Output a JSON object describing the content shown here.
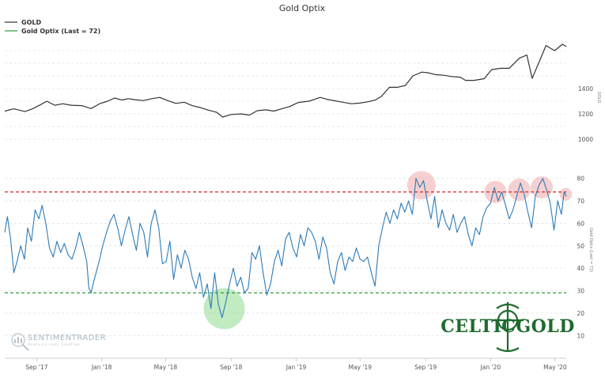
{
  "chart_data": {
    "type": "line",
    "title": "Gold Optix",
    "legend": [
      {
        "name": "GOLD",
        "color": "#333333"
      },
      {
        "name": "Gold Optix (Last = 72)",
        "color": "#2b7bb9"
      }
    ],
    "legend_placement": "top-left",
    "grid": true,
    "x_tick_labels": [
      "Sep '17",
      "Jan '18",
      "May '18",
      "Sep '18",
      "Jan '19",
      "May '19",
      "Sep '19",
      "Jan '20",
      "May '20"
    ],
    "x_range": [
      "2017-07-03",
      "2020-05-22"
    ],
    "gold_axis": {
      "label": "GOLD",
      "tick_labels": [
        "1000",
        "1200",
        "1400"
      ],
      "range": [
        800,
        1800
      ]
    },
    "optix_axis": {
      "label": "Gold Optix (Last = 72)",
      "tick_labels": [
        "10",
        "20",
        "30",
        "40",
        "50",
        "60",
        "70",
        "80"
      ],
      "range": [
        2,
        88
      ]
    },
    "thresholds": [
      {
        "name": "upper",
        "value": 74,
        "color": "#d9262b"
      },
      {
        "name": "lower",
        "value": 29,
        "color": "#2e9a3a"
      }
    ],
    "series": [
      {
        "name": "GOLD",
        "color": "#333333",
        "points": [
          [
            "2017-07-03",
            1222
          ],
          [
            "2017-07-20",
            1240
          ],
          [
            "2017-08-10",
            1218
          ],
          [
            "2017-08-25",
            1242
          ],
          [
            "2017-09-07",
            1270
          ],
          [
            "2017-09-20",
            1300
          ],
          [
            "2017-10-05",
            1268
          ],
          [
            "2017-10-20",
            1280
          ],
          [
            "2017-11-05",
            1268
          ],
          [
            "2017-11-25",
            1265
          ],
          [
            "2017-12-12",
            1242
          ],
          [
            "2017-12-29",
            1282
          ],
          [
            "2018-01-12",
            1300
          ],
          [
            "2018-01-25",
            1325
          ],
          [
            "2018-02-08",
            1310
          ],
          [
            "2018-02-20",
            1320
          ],
          [
            "2018-03-05",
            1312
          ],
          [
            "2018-03-20",
            1305
          ],
          [
            "2018-04-05",
            1320
          ],
          [
            "2018-04-20",
            1330
          ],
          [
            "2018-05-05",
            1305
          ],
          [
            "2018-05-20",
            1283
          ],
          [
            "2018-06-05",
            1292
          ],
          [
            "2018-06-20",
            1265
          ],
          [
            "2018-07-05",
            1250
          ],
          [
            "2018-07-20",
            1230
          ],
          [
            "2018-08-05",
            1212
          ],
          [
            "2018-08-16",
            1175
          ],
          [
            "2018-09-01",
            1195
          ],
          [
            "2018-09-20",
            1200
          ],
          [
            "2018-10-05",
            1190
          ],
          [
            "2018-10-20",
            1225
          ],
          [
            "2018-11-05",
            1232
          ],
          [
            "2018-11-20",
            1222
          ],
          [
            "2018-12-05",
            1240
          ],
          [
            "2018-12-20",
            1258
          ],
          [
            "2019-01-05",
            1290
          ],
          [
            "2019-01-25",
            1300
          ],
          [
            "2019-02-15",
            1330
          ],
          [
            "2019-02-28",
            1315
          ],
          [
            "2019-03-15",
            1303
          ],
          [
            "2019-03-30",
            1292
          ],
          [
            "2019-04-15",
            1280
          ],
          [
            "2019-04-30",
            1285
          ],
          [
            "2019-05-15",
            1295
          ],
          [
            "2019-05-30",
            1310
          ],
          [
            "2019-06-10",
            1338
          ],
          [
            "2019-06-25",
            1410
          ],
          [
            "2019-07-10",
            1410
          ],
          [
            "2019-07-25",
            1425
          ],
          [
            "2019-08-08",
            1500
          ],
          [
            "2019-08-25",
            1530
          ],
          [
            "2019-09-05",
            1525
          ],
          [
            "2019-09-20",
            1510
          ],
          [
            "2019-10-05",
            1505
          ],
          [
            "2019-10-20",
            1495
          ],
          [
            "2019-11-05",
            1490
          ],
          [
            "2019-11-15",
            1465
          ],
          [
            "2019-12-01",
            1465
          ],
          [
            "2019-12-20",
            1478
          ],
          [
            "2020-01-03",
            1550
          ],
          [
            "2020-01-20",
            1560
          ],
          [
            "2020-02-05",
            1560
          ],
          [
            "2020-02-24",
            1640
          ],
          [
            "2020-03-09",
            1665
          ],
          [
            "2020-03-19",
            1480
          ],
          [
            "2020-03-31",
            1600
          ],
          [
            "2020-04-14",
            1740
          ],
          [
            "2020-04-30",
            1700
          ],
          [
            "2020-05-15",
            1750
          ],
          [
            "2020-05-22",
            1732
          ]
        ]
      },
      {
        "name": "Gold Optix (Last = 72)",
        "color": "#2b7bb9",
        "points": [
          [
            "2017-07-03",
            56
          ],
          [
            "2017-07-08",
            63
          ],
          [
            "2017-07-14",
            53
          ],
          [
            "2017-07-20",
            38
          ],
          [
            "2017-07-26",
            43
          ],
          [
            "2017-08-02",
            50
          ],
          [
            "2017-08-09",
            44
          ],
          [
            "2017-08-15",
            58
          ],
          [
            "2017-08-22",
            52
          ],
          [
            "2017-08-29",
            66
          ],
          [
            "2017-09-05",
            62
          ],
          [
            "2017-09-11",
            68
          ],
          [
            "2017-09-18",
            60
          ],
          [
            "2017-09-25",
            49
          ],
          [
            "2017-10-02",
            45
          ],
          [
            "2017-10-09",
            52
          ],
          [
            "2017-10-16",
            47
          ],
          [
            "2017-10-23",
            51
          ],
          [
            "2017-10-30",
            46
          ],
          [
            "2017-11-06",
            44
          ],
          [
            "2017-11-13",
            49
          ],
          [
            "2017-11-20",
            56
          ],
          [
            "2017-11-27",
            50
          ],
          [
            "2017-12-04",
            43
          ],
          [
            "2017-12-08",
            31
          ],
          [
            "2017-12-12",
            29
          ],
          [
            "2017-12-18",
            35
          ],
          [
            "2017-12-26",
            42
          ],
          [
            "2018-01-03",
            50
          ],
          [
            "2018-01-10",
            56
          ],
          [
            "2018-01-17",
            61
          ],
          [
            "2018-01-24",
            64
          ],
          [
            "2018-01-31",
            58
          ],
          [
            "2018-02-07",
            50
          ],
          [
            "2018-02-14",
            57
          ],
          [
            "2018-02-21",
            63
          ],
          [
            "2018-02-28",
            55
          ],
          [
            "2018-03-07",
            48
          ],
          [
            "2018-03-14",
            60
          ],
          [
            "2018-03-21",
            56
          ],
          [
            "2018-03-28",
            45
          ],
          [
            "2018-04-04",
            60
          ],
          [
            "2018-04-11",
            66
          ],
          [
            "2018-04-18",
            58
          ],
          [
            "2018-04-25",
            42
          ],
          [
            "2018-05-02",
            43
          ],
          [
            "2018-05-09",
            52
          ],
          [
            "2018-05-16",
            35
          ],
          [
            "2018-05-23",
            46
          ],
          [
            "2018-05-30",
            40
          ],
          [
            "2018-06-06",
            48
          ],
          [
            "2018-06-13",
            44
          ],
          [
            "2018-06-20",
            36
          ],
          [
            "2018-06-27",
            31
          ],
          [
            "2018-07-04",
            38
          ],
          [
            "2018-07-11",
            27
          ],
          [
            "2018-07-18",
            33
          ],
          [
            "2018-07-25",
            22
          ],
          [
            "2018-08-01",
            38
          ],
          [
            "2018-08-08",
            24
          ],
          [
            "2018-08-15",
            18
          ],
          [
            "2018-08-22",
            25
          ],
          [
            "2018-08-29",
            33
          ],
          [
            "2018-09-05",
            40
          ],
          [
            "2018-09-12",
            32
          ],
          [
            "2018-09-19",
            36
          ],
          [
            "2018-09-26",
            29
          ],
          [
            "2018-10-03",
            31
          ],
          [
            "2018-10-10",
            47
          ],
          [
            "2018-10-17",
            44
          ],
          [
            "2018-10-24",
            50
          ],
          [
            "2018-10-31",
            38
          ],
          [
            "2018-11-07",
            28
          ],
          [
            "2018-11-14",
            33
          ],
          [
            "2018-11-21",
            43
          ],
          [
            "2018-11-28",
            48
          ],
          [
            "2018-12-05",
            41
          ],
          [
            "2018-12-12",
            53
          ],
          [
            "2018-12-19",
            56
          ],
          [
            "2018-12-26",
            49
          ],
          [
            "2019-01-02",
            45
          ],
          [
            "2019-01-09",
            55
          ],
          [
            "2019-01-16",
            50
          ],
          [
            "2019-01-23",
            58
          ],
          [
            "2019-01-30",
            56
          ],
          [
            "2019-02-06",
            52
          ],
          [
            "2019-02-13",
            44
          ],
          [
            "2019-02-20",
            54
          ],
          [
            "2019-02-27",
            49
          ],
          [
            "2019-03-06",
            38
          ],
          [
            "2019-03-13",
            33
          ],
          [
            "2019-03-20",
            43
          ],
          [
            "2019-03-27",
            47
          ],
          [
            "2019-04-03",
            39
          ],
          [
            "2019-04-10",
            45
          ],
          [
            "2019-04-17",
            43
          ],
          [
            "2019-04-24",
            49
          ],
          [
            "2019-05-01",
            44
          ],
          [
            "2019-05-08",
            43
          ],
          [
            "2019-05-15",
            45
          ],
          [
            "2019-05-22",
            38
          ],
          [
            "2019-05-29",
            32
          ],
          [
            "2019-06-05",
            50
          ],
          [
            "2019-06-12",
            58
          ],
          [
            "2019-06-19",
            65
          ],
          [
            "2019-06-26",
            60
          ],
          [
            "2019-07-03",
            66
          ],
          [
            "2019-07-10",
            62
          ],
          [
            "2019-07-17",
            69
          ],
          [
            "2019-07-24",
            65
          ],
          [
            "2019-07-31",
            70
          ],
          [
            "2019-08-07",
            64
          ],
          [
            "2019-08-14",
            80
          ],
          [
            "2019-08-21",
            76
          ],
          [
            "2019-08-28",
            79
          ],
          [
            "2019-09-04",
            70
          ],
          [
            "2019-09-11",
            62
          ],
          [
            "2019-09-18",
            72
          ],
          [
            "2019-09-25",
            58
          ],
          [
            "2019-10-02",
            66
          ],
          [
            "2019-10-09",
            60
          ],
          [
            "2019-10-16",
            57
          ],
          [
            "2019-10-23",
            64
          ],
          [
            "2019-10-30",
            56
          ],
          [
            "2019-11-06",
            60
          ],
          [
            "2019-11-13",
            63
          ],
          [
            "2019-11-20",
            55
          ],
          [
            "2019-11-27",
            50
          ],
          [
            "2019-12-04",
            58
          ],
          [
            "2019-12-11",
            55
          ],
          [
            "2019-12-18",
            63
          ],
          [
            "2019-12-25",
            67
          ],
          [
            "2020-01-01",
            69
          ],
          [
            "2020-01-08",
            76
          ],
          [
            "2020-01-15",
            70
          ],
          [
            "2020-01-22",
            74
          ],
          [
            "2020-01-29",
            68
          ],
          [
            "2020-02-05",
            62
          ],
          [
            "2020-02-12",
            66
          ],
          [
            "2020-02-19",
            72
          ],
          [
            "2020-02-26",
            78
          ],
          [
            "2020-03-04",
            73
          ],
          [
            "2020-03-11",
            65
          ],
          [
            "2020-03-18",
            58
          ],
          [
            "2020-03-25",
            72
          ],
          [
            "2020-04-01",
            77
          ],
          [
            "2020-04-08",
            80
          ],
          [
            "2020-04-15",
            75
          ],
          [
            "2020-04-22",
            69
          ],
          [
            "2020-04-29",
            57
          ],
          [
            "2020-05-06",
            70
          ],
          [
            "2020-05-13",
            64
          ],
          [
            "2020-05-18",
            74
          ],
          [
            "2020-05-22",
            72
          ]
        ]
      }
    ],
    "annotations": [
      {
        "type": "highlight-circle",
        "color": "red",
        "date": "2019-08-24",
        "value": 77
      },
      {
        "type": "highlight-circle",
        "color": "red",
        "date": "2020-01-10",
        "value": 74
      },
      {
        "type": "highlight-circle",
        "color": "red",
        "date": "2020-02-24",
        "value": 75
      },
      {
        "type": "highlight-circle",
        "color": "red",
        "date": "2020-04-06",
        "value": 76
      },
      {
        "type": "highlight-circle",
        "color": "red",
        "date": "2020-05-21",
        "value": 73
      },
      {
        "type": "highlight-circle",
        "color": "green",
        "date": "2018-08-19",
        "value": 22
      }
    ]
  },
  "watermark": {
    "brand": "SENTIMENTRADER",
    "tagline": "Analysis over Emotion"
  },
  "logo": {
    "text": "CELTICGOLD",
    "color": "#1e6b2f"
  }
}
